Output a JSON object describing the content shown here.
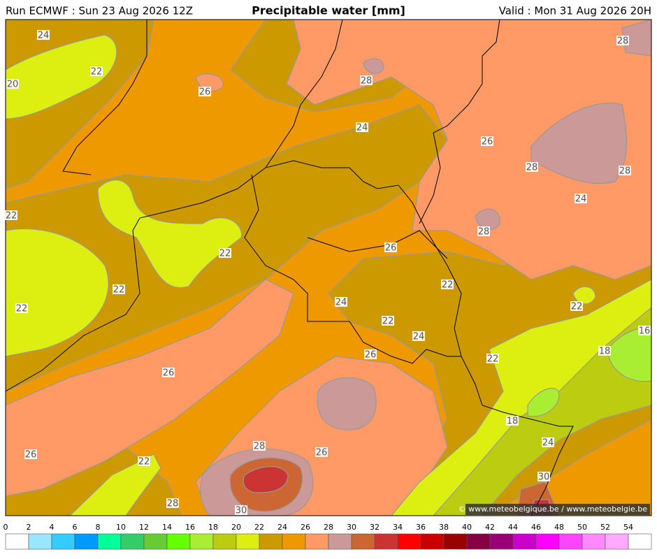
{
  "header": {
    "run": "Run ECMWF : Sun 23 Aug 2026 12Z",
    "title": "Precipitable water [mm]",
    "valid": "Valid : Mon 31 Aug 2026 20H"
  },
  "map": {
    "contour_labels": [
      "24",
      "22",
      "20",
      "26",
      "28",
      "28",
      "24",
      "26",
      "28",
      "28",
      "24",
      "22",
      "28",
      "26",
      "22",
      "22",
      "22",
      "22",
      "24",
      "22",
      "22",
      "24",
      "16",
      "18",
      "26",
      "22",
      "26",
      "18",
      "24",
      "28",
      "26",
      "26",
      "22",
      "30",
      "28",
      "30"
    ],
    "credit": "© www.meteobelgique.be / www.meteobelgie.be"
  },
  "legend": {
    "ticks": [
      0,
      2,
      4,
      6,
      8,
      10,
      12,
      14,
      16,
      18,
      20,
      22,
      24,
      26,
      28,
      30,
      32,
      34,
      36,
      38,
      40,
      42,
      44,
      46,
      48,
      50,
      52,
      54
    ],
    "colors": [
      "#ffffff",
      "#99e6ff",
      "#33ccff",
      "#0099ff",
      "#00ff99",
      "#33cc66",
      "#66cc33",
      "#66ff00",
      "#aaee33",
      "#bbcc11",
      "#ddee11",
      "#cc9900",
      "#ee9900",
      "#ff9966",
      "#cc9999",
      "#cc6633",
      "#cc3333",
      "#ff0000",
      "#cc0000",
      "#990000",
      "#880044",
      "#990077",
      "#cc00cc",
      "#ff00ff",
      "#ff44ff",
      "#ff88ff",
      "#ffaaff",
      "#ffffff"
    ]
  }
}
